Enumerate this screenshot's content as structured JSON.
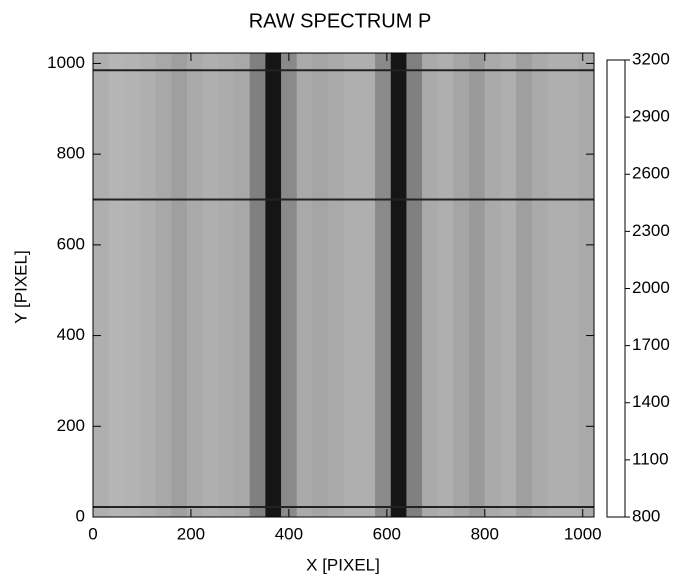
{
  "chart_data": {
    "type": "image",
    "title": "RAW SPECTRUM   P",
    "x_label": "X [PIXEL]",
    "y_label": "Y [PIXEL]",
    "xlim": [
      0,
      1023
    ],
    "ylim": [
      0,
      1023
    ],
    "xticks": [
      0,
      200,
      400,
      600,
      800,
      1000
    ],
    "yticks": [
      0,
      200,
      400,
      600,
      800,
      1000
    ],
    "x": [
      16,
      48,
      80,
      112,
      144,
      176,
      208,
      240,
      272,
      304,
      336,
      368,
      400,
      432,
      464,
      496,
      528,
      560,
      592,
      624,
      656,
      688,
      720,
      752,
      784,
      816,
      848,
      880,
      912,
      944,
      976,
      1008
    ],
    "values": [
      2450,
      2500,
      2480,
      2450,
      2380,
      2300,
      2400,
      2450,
      2420,
      2380,
      2000,
      1000,
      2100,
      2400,
      2350,
      2400,
      2450,
      2450,
      2100,
      1000,
      2000,
      2400,
      2450,
      2350,
      2250,
      2400,
      2450,
      2300,
      2400,
      2450,
      2450,
      2400
    ],
    "dark_rows": [
      22,
      700,
      985
    ],
    "colormap": "gray",
    "clim": [
      800,
      3200
    ],
    "cticks": [
      800,
      1100,
      1400,
      1700,
      2000,
      2300,
      2600,
      2900,
      3200
    ]
  }
}
